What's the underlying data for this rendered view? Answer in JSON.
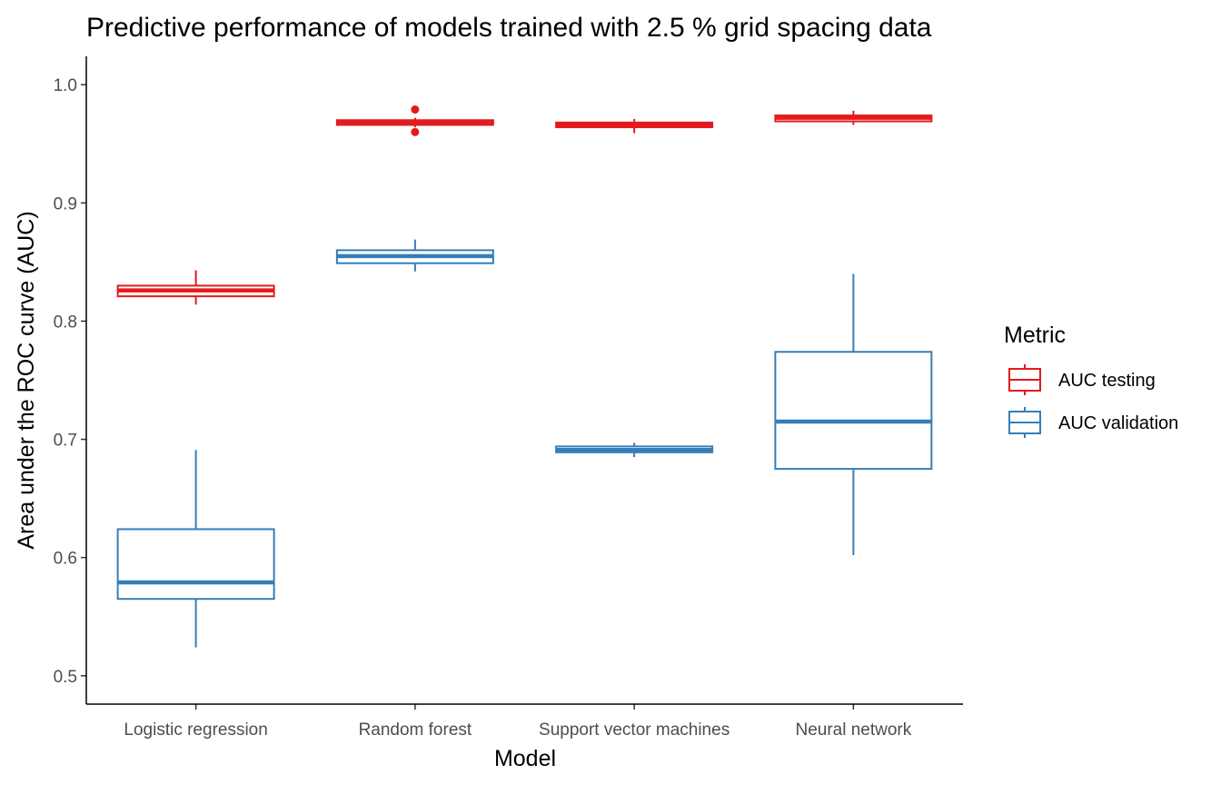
{
  "chart_data": {
    "type": "boxplot",
    "title": "Predictive performance of models trained with 2.5 % grid spacing data",
    "xlabel": "Model",
    "ylabel": "Area under the ROC curve (AUC)",
    "categories": [
      "Logistic regression",
      "Random forest",
      "Support vector machines",
      "Neural network"
    ],
    "ylim": [
      0.476,
      1.024
    ],
    "yticks": [
      0.5,
      0.6,
      0.7,
      0.8,
      0.9,
      1.0
    ],
    "ytick_labels": [
      "0.5",
      "0.6",
      "0.7",
      "0.8",
      "0.9",
      "1.0"
    ],
    "grid": false,
    "legend": {
      "title": "Metric",
      "position": "right",
      "entries": [
        "AUC testing",
        "AUC validation"
      ]
    },
    "series": [
      {
        "name": "AUC testing",
        "color": "#E41A1C",
        "boxes": [
          {
            "min": 0.814,
            "q1": 0.821,
            "median": 0.826,
            "q3": 0.83,
            "max": 0.843,
            "outliers": []
          },
          {
            "min": 0.964,
            "q1": 0.966,
            "median": 0.968,
            "q3": 0.97,
            "max": 0.972,
            "outliers": [
              0.979,
              0.96
            ]
          },
          {
            "min": 0.959,
            "q1": 0.964,
            "median": 0.966,
            "q3": 0.968,
            "max": 0.971,
            "outliers": []
          },
          {
            "min": 0.966,
            "q1": 0.969,
            "median": 0.972,
            "q3": 0.974,
            "max": 0.978,
            "outliers": []
          }
        ]
      },
      {
        "name": "AUC validation",
        "color": "#377EB8",
        "boxes": [
          {
            "min": 0.524,
            "q1": 0.565,
            "median": 0.579,
            "q3": 0.624,
            "max": 0.691,
            "outliers": []
          },
          {
            "min": 0.842,
            "q1": 0.849,
            "median": 0.855,
            "q3": 0.86,
            "max": 0.869,
            "outliers": []
          },
          {
            "min": 0.685,
            "q1": 0.689,
            "median": 0.691,
            "q3": 0.694,
            "max": 0.697,
            "outliers": []
          },
          {
            "min": 0.602,
            "q1": 0.675,
            "median": 0.715,
            "q3": 0.774,
            "max": 0.84,
            "outliers": []
          }
        ]
      }
    ]
  }
}
